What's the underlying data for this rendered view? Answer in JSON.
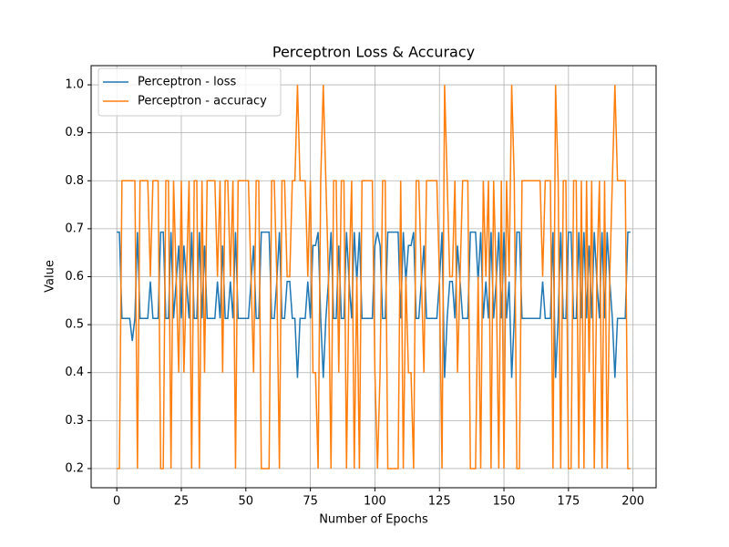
{
  "chart_data": {
    "type": "line",
    "title": "Perceptron Loss & Accuracy",
    "xlabel": "Number of Epochs",
    "ylabel": "Value",
    "x": [
      0,
      1,
      2,
      3,
      4,
      5,
      6,
      7,
      8,
      9,
      10,
      11,
      12,
      13,
      14,
      15,
      16,
      17,
      18,
      19,
      20,
      21,
      22,
      23,
      24,
      25,
      26,
      27,
      28,
      29,
      30,
      31,
      32,
      33,
      34,
      35,
      36,
      37,
      38,
      39,
      40,
      41,
      42,
      43,
      44,
      45,
      46,
      47,
      48,
      49,
      50,
      51,
      52,
      53,
      54,
      55,
      56,
      57,
      58,
      59,
      60,
      61,
      62,
      63,
      64,
      65,
      66,
      67,
      68,
      69,
      70,
      71,
      72,
      73,
      74,
      75,
      76,
      77,
      78,
      79,
      80,
      81,
      82,
      83,
      84,
      85,
      86,
      87,
      88,
      89,
      90,
      91,
      92,
      93,
      94,
      95,
      96,
      97,
      98,
      99,
      100,
      101,
      102,
      103,
      104,
      105,
      106,
      107,
      108,
      109,
      110,
      111,
      112,
      113,
      114,
      115,
      116,
      117,
      118,
      119,
      120,
      121,
      122,
      123,
      124,
      125,
      126,
      127,
      128,
      129,
      130,
      131,
      132,
      133,
      134,
      135,
      136,
      137,
      138,
      139,
      140,
      141,
      142,
      143,
      144,
      145,
      146,
      147,
      148,
      149,
      150,
      151,
      152,
      153,
      154,
      155,
      156,
      157,
      158,
      159,
      160,
      161,
      162,
      163,
      164,
      165,
      166,
      167,
      168,
      169,
      170,
      171,
      172,
      173,
      174,
      175,
      176,
      177,
      178,
      179,
      180,
      181,
      182,
      183,
      184,
      185,
      186,
      187,
      188,
      189,
      190,
      191,
      192,
      193,
      194,
      195,
      196,
      197,
      198,
      199
    ],
    "series": [
      {
        "name": "Perceptron - loss",
        "color": "#1f77b4",
        "values": [
          0.693,
          0.693,
          0.513,
          0.513,
          0.513,
          0.513,
          0.466,
          0.513,
          0.693,
          0.513,
          0.513,
          0.513,
          0.513,
          0.59,
          0.513,
          0.513,
          0.513,
          0.693,
          0.693,
          0.513,
          0.513,
          0.693,
          0.513,
          0.59,
          0.665,
          0.513,
          0.665,
          0.59,
          0.513,
          0.693,
          0.513,
          0.513,
          0.693,
          0.513,
          0.665,
          0.513,
          0.513,
          0.513,
          0.513,
          0.59,
          0.513,
          0.665,
          0.513,
          0.513,
          0.59,
          0.513,
          0.693,
          0.513,
          0.513,
          0.513,
          0.513,
          0.513,
          0.59,
          0.665,
          0.513,
          0.513,
          0.693,
          0.693,
          0.693,
          0.693,
          0.513,
          0.513,
          0.59,
          0.693,
          0.513,
          0.513,
          0.59,
          0.59,
          0.513,
          0.513,
          0.389,
          0.513,
          0.513,
          0.513,
          0.59,
          0.513,
          0.665,
          0.665,
          0.693,
          0.513,
          0.389,
          0.513,
          0.59,
          0.693,
          0.513,
          0.513,
          0.665,
          0.513,
          0.513,
          0.693,
          0.59,
          0.513,
          0.693,
          0.59,
          0.693,
          0.513,
          0.513,
          0.513,
          0.513,
          0.513,
          0.665,
          0.693,
          0.665,
          0.513,
          0.513,
          0.693,
          0.693,
          0.693,
          0.693,
          0.693,
          0.513,
          0.693,
          0.59,
          0.665,
          0.665,
          0.693,
          0.513,
          0.513,
          0.59,
          0.665,
          0.513,
          0.513,
          0.513,
          0.513,
          0.513,
          0.59,
          0.693,
          0.389,
          0.513,
          0.59,
          0.59,
          0.513,
          0.665,
          0.59,
          0.513,
          0.513,
          0.513,
          0.693,
          0.693,
          0.693,
          0.59,
          0.693,
          0.513,
          0.59,
          0.513,
          0.693,
          0.513,
          0.59,
          0.693,
          0.513,
          0.693,
          0.513,
          0.59,
          0.389,
          0.513,
          0.693,
          0.693,
          0.513,
          0.513,
          0.513,
          0.513,
          0.513,
          0.513,
          0.513,
          0.513,
          0.59,
          0.513,
          0.513,
          0.513,
          0.693,
          0.389,
          0.513,
          0.693,
          0.513,
          0.513,
          0.693,
          0.693,
          0.513,
          0.513,
          0.693,
          0.513,
          0.693,
          0.513,
          0.665,
          0.513,
          0.693,
          0.59,
          0.513,
          0.693,
          0.513,
          0.693,
          0.59,
          0.513,
          0.389,
          0.513,
          0.513,
          0.513,
          0.513,
          0.693,
          0.693
        ]
      },
      {
        "name": "Perceptron - accuracy",
        "color": "#ff7f0e",
        "values": [
          0.2,
          0.2,
          0.8,
          0.8,
          0.8,
          0.8,
          0.8,
          0.8,
          0.2,
          0.8,
          0.8,
          0.8,
          0.8,
          0.6,
          0.8,
          0.8,
          0.8,
          0.2,
          0.2,
          0.8,
          0.8,
          0.2,
          0.8,
          0.6,
          0.4,
          0.8,
          0.4,
          0.6,
          0.8,
          0.2,
          0.8,
          0.8,
          0.2,
          0.8,
          0.4,
          0.8,
          0.8,
          0.8,
          0.8,
          0.6,
          0.8,
          0.4,
          0.8,
          0.8,
          0.6,
          0.8,
          0.2,
          0.8,
          0.8,
          0.8,
          0.8,
          0.8,
          0.6,
          0.4,
          0.8,
          0.8,
          0.2,
          0.2,
          0.2,
          0.2,
          0.8,
          0.8,
          0.6,
          0.2,
          0.8,
          0.8,
          0.6,
          0.6,
          0.8,
          0.8,
          1.0,
          0.8,
          0.8,
          0.8,
          0.6,
          0.8,
          0.4,
          0.4,
          0.2,
          0.8,
          1.0,
          0.8,
          0.6,
          0.2,
          0.8,
          0.8,
          0.4,
          0.8,
          0.8,
          0.2,
          0.6,
          0.8,
          0.2,
          0.6,
          0.2,
          0.8,
          0.8,
          0.8,
          0.8,
          0.8,
          0.4,
          0.2,
          0.4,
          0.8,
          0.8,
          0.2,
          0.2,
          0.2,
          0.2,
          0.2,
          0.8,
          0.2,
          0.6,
          0.4,
          0.4,
          0.2,
          0.8,
          0.8,
          0.6,
          0.4,
          0.8,
          0.8,
          0.8,
          0.8,
          0.8,
          0.6,
          0.2,
          1.0,
          0.8,
          0.6,
          0.6,
          0.8,
          0.4,
          0.6,
          0.8,
          0.8,
          0.8,
          0.2,
          0.2,
          0.2,
          0.6,
          0.2,
          0.8,
          0.6,
          0.8,
          0.2,
          0.8,
          0.6,
          0.2,
          0.8,
          0.2,
          0.8,
          0.6,
          1.0,
          0.8,
          0.2,
          0.2,
          0.8,
          0.8,
          0.8,
          0.8,
          0.8,
          0.8,
          0.8,
          0.8,
          0.6,
          0.8,
          0.8,
          0.8,
          0.2,
          1.0,
          0.8,
          0.2,
          0.8,
          0.8,
          0.2,
          0.2,
          0.8,
          0.8,
          0.2,
          0.8,
          0.2,
          0.8,
          0.4,
          0.8,
          0.2,
          0.6,
          0.8,
          0.2,
          0.8,
          0.2,
          0.6,
          0.8,
          1.0,
          0.8,
          0.8,
          0.8,
          0.8,
          0.2,
          0.2
        ]
      }
    ],
    "xlim": [
      -9.95,
      208.95
    ],
    "xticks": [
      0,
      25,
      50,
      75,
      100,
      125,
      150,
      175,
      200
    ],
    "ylim": [
      0.16,
      1.04
    ],
    "yticks": [
      0.2,
      0.3,
      0.4,
      0.5,
      0.6,
      0.7,
      0.8,
      0.9,
      {
        "value": 1,
        "label": "1.0"
      }
    ],
    "grid": true,
    "legend": "upper left"
  }
}
